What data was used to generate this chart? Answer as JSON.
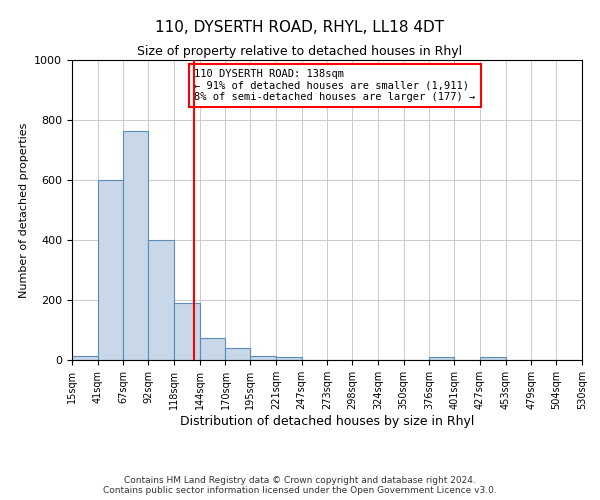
{
  "title1": "110, DYSERTH ROAD, RHYL, LL18 4DT",
  "title2": "Size of property relative to detached houses in Rhyl",
  "xlabel": "Distribution of detached houses by size in Rhyl",
  "ylabel": "Number of detached properties",
  "bar_edges": [
    15,
    41,
    67,
    92,
    118,
    144,
    170,
    195,
    221,
    247,
    273,
    298,
    324,
    350,
    376,
    401,
    427,
    453,
    479,
    504,
    530
  ],
  "bar_heights": [
    15,
    600,
    765,
    400,
    190,
    75,
    40,
    15,
    10,
    0,
    0,
    0,
    0,
    0,
    10,
    0,
    10,
    0,
    0,
    0
  ],
  "bar_color": "#c8d8e8",
  "bar_edgecolor": "#5b8db8",
  "vline_x": 138,
  "vline_color": "red",
  "ylim": [
    0,
    1000
  ],
  "annotation_box_text": "110 DYSERTH ROAD: 138sqm\n← 91% of detached houses are smaller (1,911)\n8% of semi-detached houses are larger (177) →",
  "footer1": "Contains HM Land Registry data © Crown copyright and database right 2024.",
  "footer2": "Contains public sector information licensed under the Open Government Licence v3.0.",
  "tick_labels": [
    "15sqm",
    "41sqm",
    "67sqm",
    "92sqm",
    "118sqm",
    "144sqm",
    "170sqm",
    "195sqm",
    "221sqm",
    "247sqm",
    "273sqm",
    "298sqm",
    "324sqm",
    "350sqm",
    "376sqm",
    "401sqm",
    "427sqm",
    "453sqm",
    "479sqm",
    "504sqm",
    "530sqm"
  ],
  "grid_color": "#cccccc",
  "background_color": "#ffffff"
}
